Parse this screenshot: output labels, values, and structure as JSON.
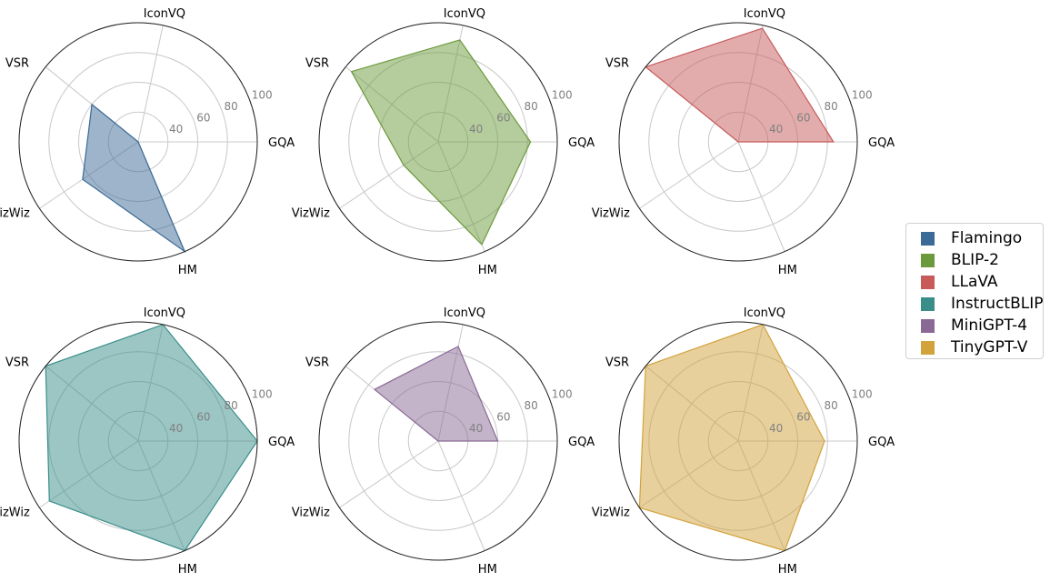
{
  "chart_data": [
    {
      "type": "radar",
      "series_name": "Flamingo",
      "color": "#3b6a96",
      "axes": [
        "GQA",
        "IconVQ",
        "VSR",
        "VizWiz",
        "HM"
      ],
      "values": [
        0,
        0,
        60,
        65,
        100
      ],
      "rlim": [
        20,
        100
      ],
      "ticks": [
        "40",
        "60",
        "80",
        "100"
      ]
    },
    {
      "type": "radar",
      "series_name": "BLIP-2",
      "color": "#6b9a3c",
      "axes": [
        "GQA",
        "IconVQ",
        "VSR",
        "VizWiz",
        "HM"
      ],
      "values": [
        82,
        90,
        95,
        48,
        95
      ],
      "rlim": [
        20,
        100
      ],
      "ticks": [
        "40",
        "60",
        "80",
        "100"
      ]
    },
    {
      "type": "radar",
      "series_name": "LLaVA",
      "color": "#c85a5a",
      "axes": [
        "GQA",
        "IconVQ",
        "VSR",
        "VizWiz",
        "HM"
      ],
      "values": [
        84,
        98,
        100,
        0,
        0
      ],
      "rlim": [
        20,
        100
      ],
      "ticks": [
        "40",
        "60",
        "80",
        "100"
      ]
    },
    {
      "type": "radar",
      "series_name": "InstructBLIP",
      "color": "#3a8e8a",
      "axes": [
        "GQA",
        "IconVQ",
        "VSR",
        "VizWiz",
        "HM"
      ],
      "values": [
        100,
        100,
        100,
        92,
        100
      ],
      "rlim": [
        20,
        100
      ],
      "ticks": [
        "40",
        "60",
        "80",
        "100"
      ]
    },
    {
      "type": "radar",
      "series_name": "MiniGPT-4",
      "color": "#8a6a95",
      "axes": [
        "GQA",
        "IconVQ",
        "VSR",
        "VizWiz",
        "HM"
      ],
      "values": [
        60,
        85,
        75,
        0,
        0
      ],
      "rlim": [
        20,
        100
      ],
      "ticks": [
        "40",
        "60",
        "80",
        "100"
      ]
    },
    {
      "type": "radar",
      "series_name": "TinyGPT-V",
      "color": "#d2a23c",
      "axes": [
        "GQA",
        "IconVQ",
        "VSR",
        "VizWiz",
        "HM"
      ],
      "values": [
        78,
        100,
        100,
        100,
        100
      ],
      "rlim": [
        20,
        100
      ],
      "ticks": [
        "40",
        "60",
        "80",
        "100"
      ]
    }
  ],
  "legend": {
    "items": [
      {
        "label": "Flamingo",
        "color": "#3b6a96"
      },
      {
        "label": "BLIP-2",
        "color": "#6b9a3c"
      },
      {
        "label": "LLaVA",
        "color": "#c85a5a"
      },
      {
        "label": "InstructBLIP",
        "color": "#3a8e8a"
      },
      {
        "label": "MiniGPT-4",
        "color": "#8a6a95"
      },
      {
        "label": "TinyGPT-V",
        "color": "#d2a23c"
      }
    ]
  }
}
